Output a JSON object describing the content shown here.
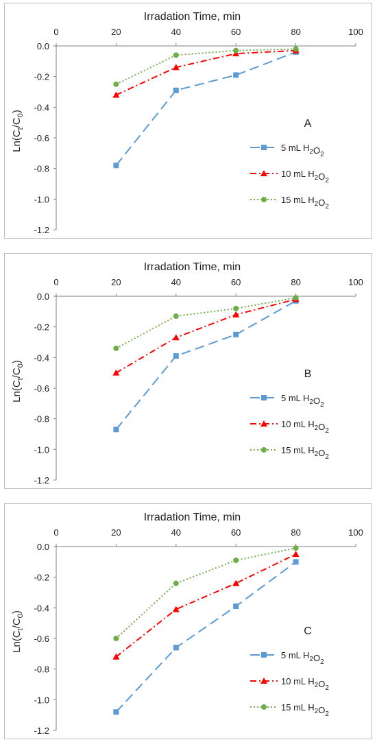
{
  "figure": {
    "legend_labels": [
      "5 mL H2O2",
      "10 mL H2O2",
      "15 mL H2O2"
    ]
  },
  "chart_data": [
    {
      "type": "line",
      "panel_label": "A",
      "xlabel": "Irradation Time, min",
      "ylabel": "Ln(Ct/C0)",
      "xlim": [
        0,
        100
      ],
      "ylim": [
        -1.2,
        0.0
      ],
      "x_ticks": [
        "0",
        "20",
        "40",
        "60",
        "80",
        "100"
      ],
      "y_ticks": [
        "0.0",
        "-0.2",
        "-0.4",
        "-0.6",
        "-0.8",
        "-1.0",
        "-1.2"
      ],
      "x_axis_position": "top",
      "legend_position": "center-right",
      "grid": false,
      "series": [
        {
          "name": "5 mL H2O2",
          "color": "#5b9bd5",
          "line_style": "long-dash",
          "marker": "square",
          "x": [
            20,
            40,
            60,
            80
          ],
          "y": [
            -0.78,
            -0.29,
            -0.19,
            -0.04
          ]
        },
        {
          "name": "10 mL H2O2",
          "color": "#ff0000",
          "line_style": "dash-dot",
          "marker": "triangle",
          "x": [
            20,
            40,
            60,
            80
          ],
          "y": [
            -0.32,
            -0.14,
            -0.05,
            -0.03
          ]
        },
        {
          "name": "15 mL H2O2",
          "color": "#70ad47",
          "line_style": "dotted",
          "marker": "circle",
          "x": [
            20,
            40,
            60,
            80
          ],
          "y": [
            -0.25,
            -0.06,
            -0.03,
            -0.02
          ]
        }
      ]
    },
    {
      "type": "line",
      "panel_label": "B",
      "xlabel": "Irradation Time, min",
      "ylabel": "Ln(Ct/C0)",
      "xlim": [
        0,
        100
      ],
      "ylim": [
        -1.2,
        0.0
      ],
      "x_ticks": [
        "0",
        "20",
        "40",
        "60",
        "80",
        "100"
      ],
      "y_ticks": [
        "0.0",
        "-0.2",
        "-0.4",
        "-0.6",
        "-0.8",
        "-1.0",
        "-1.2"
      ],
      "x_axis_position": "top",
      "legend_position": "center-right",
      "grid": false,
      "series": [
        {
          "name": "5 mL H2O2",
          "color": "#5b9bd5",
          "line_style": "long-dash",
          "marker": "square",
          "x": [
            20,
            40,
            60,
            80
          ],
          "y": [
            -0.87,
            -0.39,
            -0.25,
            -0.03
          ]
        },
        {
          "name": "10 mL H2O2",
          "color": "#ff0000",
          "line_style": "dash-dot",
          "marker": "triangle",
          "x": [
            20,
            40,
            60,
            80
          ],
          "y": [
            -0.5,
            -0.27,
            -0.12,
            -0.02
          ]
        },
        {
          "name": "15 mL H2O2",
          "color": "#70ad47",
          "line_style": "dotted",
          "marker": "circle",
          "x": [
            20,
            40,
            60,
            80
          ],
          "y": [
            -0.34,
            -0.13,
            -0.08,
            -0.01
          ]
        }
      ]
    },
    {
      "type": "line",
      "panel_label": "C",
      "xlabel": "Irradation Time, min",
      "ylabel": "Ln(Ct/C0)",
      "xlim": [
        0,
        100
      ],
      "ylim": [
        -1.2,
        0.0
      ],
      "x_ticks": [
        "0",
        "20",
        "40",
        "60",
        "80",
        "100"
      ],
      "y_ticks": [
        "0.0",
        "-0.2",
        "-0.4",
        "-0.6",
        "-0.8",
        "-1.0",
        "-1.2"
      ],
      "x_axis_position": "top",
      "legend_position": "center-right",
      "grid": false,
      "series": [
        {
          "name": "5 mL H2O2",
          "color": "#5b9bd5",
          "line_style": "long-dash",
          "marker": "square",
          "x": [
            20,
            40,
            60,
            80
          ],
          "y": [
            -1.08,
            -0.66,
            -0.39,
            -0.1
          ]
        },
        {
          "name": "10 mL H2O2",
          "color": "#ff0000",
          "line_style": "dash-dot",
          "marker": "triangle",
          "x": [
            20,
            40,
            60,
            80
          ],
          "y": [
            -0.72,
            -0.41,
            -0.24,
            -0.05
          ]
        },
        {
          "name": "15 mL H2O2",
          "color": "#70ad47",
          "line_style": "dotted",
          "marker": "circle",
          "x": [
            20,
            40,
            60,
            80
          ],
          "y": [
            -0.6,
            -0.24,
            -0.09,
            -0.01
          ]
        }
      ]
    }
  ]
}
